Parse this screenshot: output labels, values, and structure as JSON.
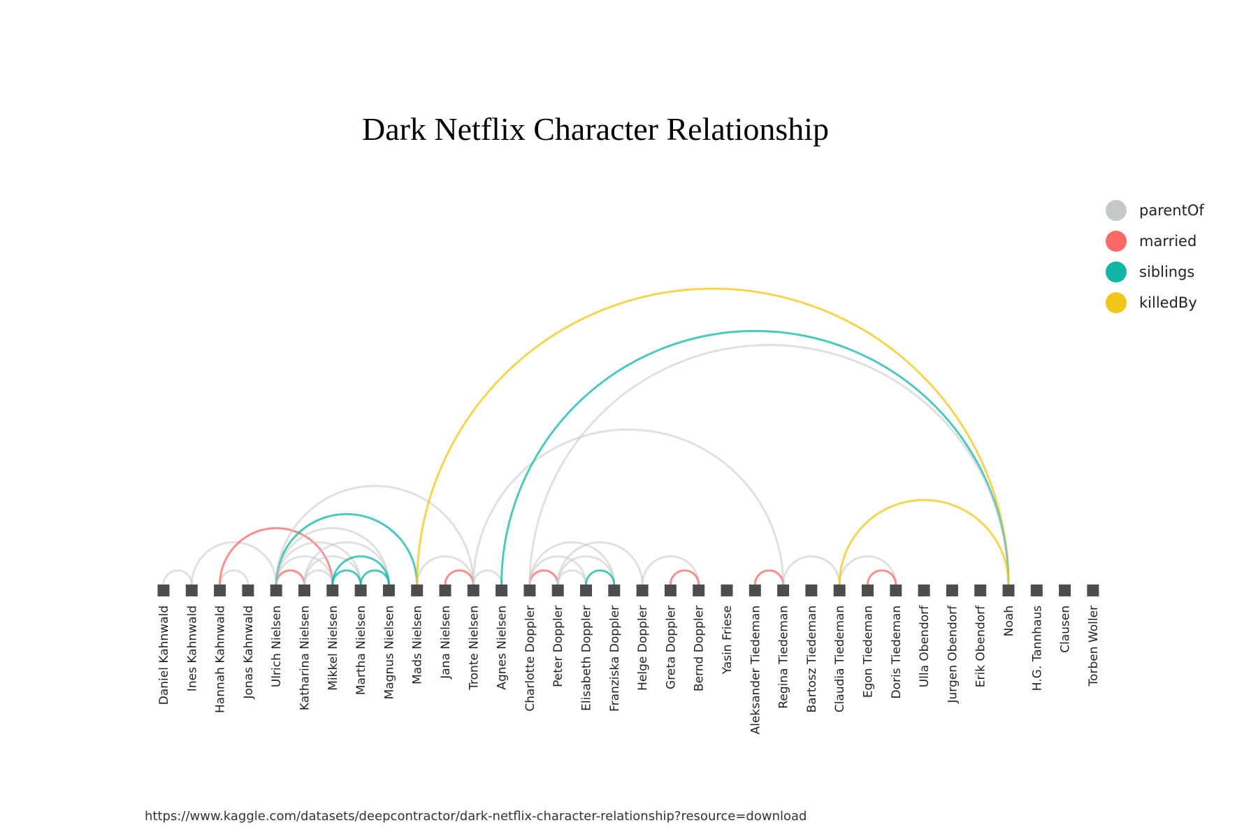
{
  "title": "Dark Netflix Character Relationship",
  "source": "https://www.kaggle.com/datasets/deepcontractor/dark-netflix-character-relationship?resource=download",
  "chart_data": {
    "type": "arc",
    "nodes": [
      "Daniel Kahnwald",
      "Ines Kahnwald",
      "Hannah Kahnwald",
      "Jonas Kahnwald",
      "Ulrich Nielsen",
      "Katharina Nielsen",
      "Mikkel Nielsen",
      "Martha Nielsen",
      "Magnus Nielsen",
      "Mads Nielsen",
      "Jana Nielsen",
      "Tronte Nielsen",
      "Agnes Nielsen",
      "Charlotte Doppler",
      "Peter Doppler",
      "Elisabeth Doppler",
      "Franziska Doppler",
      "Helge Doppler",
      "Greta Doppler",
      "Bernd Doppler",
      "Yasin Friese",
      "Aleksander Tiedeman",
      "Regina Tiedeman",
      "Bartosz Tiedeman",
      "Claudia Tiedeman",
      "Egon Tiedeman",
      "Doris Tiedeman",
      "Ulla Obendorf",
      "Jurgen Obendorf",
      "Erik Obendorf",
      "Noah",
      "H.G. Tannhaus",
      "Clausen",
      "Torben Woller"
    ],
    "legend": [
      {
        "name": "parentOf",
        "color": "#c4c8c8"
      },
      {
        "name": "married",
        "color": "#fb6a67"
      },
      {
        "name": "siblings",
        "color": "#10b5a5"
      },
      {
        "name": "killedBy",
        "color": "#f2c618"
      }
    ],
    "links": [
      {
        "source": "Daniel Kahnwald",
        "target": "Ines Kahnwald",
        "type": "parentOf"
      },
      {
        "source": "Ines Kahnwald",
        "target": "Ulrich Nielsen",
        "type": "parentOf"
      },
      {
        "source": "Hannah Kahnwald",
        "target": "Jonas Kahnwald",
        "type": "parentOf"
      },
      {
        "source": "Hannah Kahnwald",
        "target": "Mikkel Nielsen",
        "type": "married"
      },
      {
        "source": "Ulrich Nielsen",
        "target": "Katharina Nielsen",
        "type": "married"
      },
      {
        "source": "Ulrich Nielsen",
        "target": "Mikkel Nielsen",
        "type": "parentOf"
      },
      {
        "source": "Ulrich Nielsen",
        "target": "Martha Nielsen",
        "type": "parentOf"
      },
      {
        "source": "Ulrich Nielsen",
        "target": "Magnus Nielsen",
        "type": "parentOf"
      },
      {
        "source": "Ulrich Nielsen",
        "target": "Mads Nielsen",
        "type": "siblings"
      },
      {
        "source": "Ulrich Nielsen",
        "target": "Tronte Nielsen",
        "type": "parentOf"
      },
      {
        "source": "Katharina Nielsen",
        "target": "Mikkel Nielsen",
        "type": "parentOf"
      },
      {
        "source": "Katharina Nielsen",
        "target": "Martha Nielsen",
        "type": "parentOf"
      },
      {
        "source": "Katharina Nielsen",
        "target": "Magnus Nielsen",
        "type": "parentOf"
      },
      {
        "source": "Mikkel Nielsen",
        "target": "Martha Nielsen",
        "type": "siblings"
      },
      {
        "source": "Mikkel Nielsen",
        "target": "Magnus Nielsen",
        "type": "siblings"
      },
      {
        "source": "Martha Nielsen",
        "target": "Magnus Nielsen",
        "type": "siblings"
      },
      {
        "source": "Mads Nielsen",
        "target": "Tronte Nielsen",
        "type": "parentOf"
      },
      {
        "source": "Mads Nielsen",
        "target": "Noah",
        "type": "killedBy"
      },
      {
        "source": "Jana Nielsen",
        "target": "Tronte Nielsen",
        "type": "married"
      },
      {
        "source": "Tronte Nielsen",
        "target": "Agnes Nielsen",
        "type": "parentOf"
      },
      {
        "source": "Tronte Nielsen",
        "target": "Regina Tiedeman",
        "type": "parentOf"
      },
      {
        "source": "Agnes Nielsen",
        "target": "Noah",
        "type": "siblings"
      },
      {
        "source": "Charlotte Doppler",
        "target": "Peter Doppler",
        "type": "married"
      },
      {
        "source": "Charlotte Doppler",
        "target": "Elisabeth Doppler",
        "type": "parentOf"
      },
      {
        "source": "Charlotte Doppler",
        "target": "Franziska Doppler",
        "type": "parentOf"
      },
      {
        "source": "Charlotte Doppler",
        "target": "Noah",
        "type": "parentOf"
      },
      {
        "source": "Peter Doppler",
        "target": "Elisabeth Doppler",
        "type": "parentOf"
      },
      {
        "source": "Peter Doppler",
        "target": "Franziska Doppler",
        "type": "parentOf"
      },
      {
        "source": "Peter Doppler",
        "target": "Helge Doppler",
        "type": "parentOf"
      },
      {
        "source": "Elisabeth Doppler",
        "target": "Franziska Doppler",
        "type": "siblings"
      },
      {
        "source": "Helge Doppler",
        "target": "Bernd Doppler",
        "type": "parentOf"
      },
      {
        "source": "Greta Doppler",
        "target": "Bernd Doppler",
        "type": "married"
      },
      {
        "source": "Aleksander Tiedeman",
        "target": "Regina Tiedeman",
        "type": "married"
      },
      {
        "source": "Regina Tiedeman",
        "target": "Claudia Tiedeman",
        "type": "parentOf"
      },
      {
        "source": "Claudia Tiedeman",
        "target": "Doris Tiedeman",
        "type": "parentOf"
      },
      {
        "source": "Claudia Tiedeman",
        "target": "Noah",
        "type": "killedBy"
      },
      {
        "source": "Egon Tiedeman",
        "target": "Doris Tiedeman",
        "type": "married"
      }
    ]
  }
}
